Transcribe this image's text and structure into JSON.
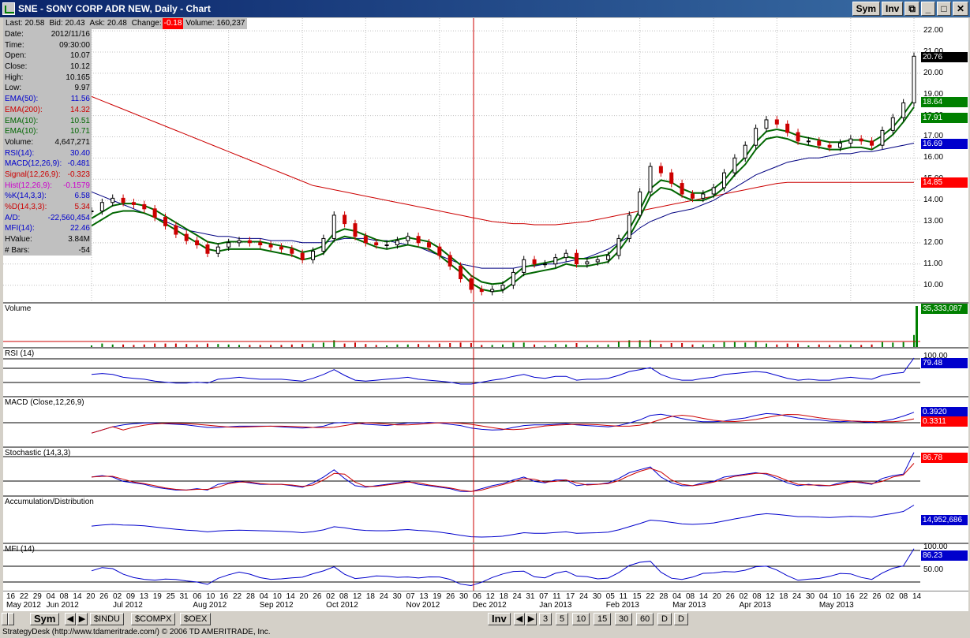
{
  "window": {
    "title": "SNE - SONY CORP ADR NEW, Daily - Chart",
    "buttons": {
      "sym": "Sym",
      "inv": "Inv",
      "restore": "⧉",
      "minimize": "_",
      "maximize": "□",
      "close": "✕"
    }
  },
  "quote_bar": {
    "last": "Last: 20.58",
    "bid": "Bid: 20.43",
    "ask": "Ask: 20.48",
    "change_label": "Change:",
    "change_value": "-0.18",
    "volume": "Volume: 160,237"
  },
  "data_panel": [
    {
      "label": "Date:",
      "value": "2012/11/16",
      "color": "#000000"
    },
    {
      "label": "Time:",
      "value": "09:30:00",
      "color": "#000000"
    },
    {
      "label": "Open:",
      "value": "10.07",
      "color": "#000000"
    },
    {
      "label": "Close:",
      "value": "10.12",
      "color": "#000000"
    },
    {
      "label": "High:",
      "value": "10.165",
      "color": "#000000"
    },
    {
      "label": "Low:",
      "value": "9.97",
      "color": "#000000"
    },
    {
      "label": "EMA(50):",
      "value": "11.56",
      "color": "#0000cc"
    },
    {
      "label": "EMA(200):",
      "value": "14.32",
      "color": "#cc0000"
    },
    {
      "label": "EMA(10):",
      "value": "10.51",
      "color": "#006600"
    },
    {
      "label": "EMA(10):",
      "value": "10.71",
      "color": "#006600"
    },
    {
      "label": "Volume:",
      "value": "4,647,271",
      "color": "#000000"
    },
    {
      "label": "RSI(14):",
      "value": "30.40",
      "color": "#0000cc"
    },
    {
      "label": "MACD(12,26,9):",
      "value": "-0.481",
      "color": "#0000cc"
    },
    {
      "label": "Signal(12,26,9):",
      "value": "-0.323",
      "color": "#cc0000"
    },
    {
      "label": "Hist(12,26,9):",
      "value": "-0.1579",
      "color": "#cc00cc"
    },
    {
      "label": "%K(14,3,3):",
      "value": "6.58",
      "color": "#0000cc"
    },
    {
      "label": "%D(14,3,3):",
      "value": "5.34",
      "color": "#cc0000"
    },
    {
      "label": "A/D:",
      "value": "-22,560,454",
      "color": "#0000cc"
    },
    {
      "label": "MFI(14):",
      "value": "22.46",
      "color": "#0000cc"
    },
    {
      "label": "HValue:",
      "value": "3.84M",
      "color": "#000000"
    },
    {
      "label": "# Bars:",
      "value": "-54",
      "color": "#000000"
    }
  ],
  "price_axis": {
    "ticks": [
      "22.00",
      "21.00",
      "20.00",
      "19.00",
      "18.00",
      "17.00",
      "16.00",
      "15.00",
      "14.00",
      "13.00",
      "12.00",
      "11.00",
      "10.00"
    ],
    "tags": [
      {
        "value": "20.76",
        "bg": "#000000",
        "fg": "#ffffff",
        "price": 20.76
      },
      {
        "value": "18.64",
        "bg": "#008000",
        "fg": "#ffffff",
        "price": 18.64
      },
      {
        "value": "17.91",
        "bg": "#008000",
        "fg": "#ffffff",
        "price": 17.91
      },
      {
        "value": "16.69",
        "bg": "#0000cc",
        "fg": "#ffffff",
        "price": 16.69
      },
      {
        "value": "14.85",
        "bg": "#ff0000",
        "fg": "#ffffff",
        "price": 14.85
      }
    ]
  },
  "panes": {
    "volume": {
      "label": "Volume",
      "tag": "35,333,087"
    },
    "rsi": {
      "label": "RSI (14)",
      "tick": "100.00",
      "tag": "79.48"
    },
    "macd": {
      "label": "MACD (Close,12,26,9)",
      "tag1": "0.3920",
      "tag2": "0.3311"
    },
    "stochastic": {
      "label": "Stochastic (14,3,3)",
      "tag": "86.78"
    },
    "ad": {
      "label": "Accumulation/Distribution",
      "tag": "14,952,686"
    },
    "mfi": {
      "label": "MFI (14)",
      "tick1": "100.00",
      "tick2": "50.00",
      "tag": "86.23"
    }
  },
  "x_axis": {
    "days": [
      "16",
      "22",
      "29",
      "04",
      "08",
      "14",
      "20",
      "26",
      "02",
      "09",
      "13",
      "19",
      "25",
      "31",
      "06",
      "10",
      "16",
      "22",
      "28",
      "04",
      "10",
      "14",
      "20",
      "26",
      "02",
      "08",
      "12",
      "18",
      "24",
      "30",
      "07",
      "13",
      "19",
      "26",
      "30",
      "06",
      "12",
      "18",
      "24",
      "31",
      "07",
      "11",
      "17",
      "24",
      "30",
      "05",
      "11",
      "15",
      "22",
      "28",
      "04",
      "08",
      "14",
      "20",
      "26",
      "02",
      "08",
      "12",
      "18",
      "24",
      "30",
      "04",
      "10",
      "16",
      "22",
      "26",
      "02",
      "08",
      "14"
    ],
    "months": [
      {
        "label": "May 2012",
        "idx": 0
      },
      {
        "label": "Jun 2012",
        "idx": 3
      },
      {
        "label": "Jul 2012",
        "idx": 8
      },
      {
        "label": "Aug 2012",
        "idx": 14
      },
      {
        "label": "Sep 2012",
        "idx": 19
      },
      {
        "label": "Oct 2012",
        "idx": 24
      },
      {
        "label": "Nov 2012",
        "idx": 30
      },
      {
        "label": "Dec 2012",
        "idx": 35
      },
      {
        "label": "Jan 2013",
        "idx": 40
      },
      {
        "label": "Feb 2013",
        "idx": 45
      },
      {
        "label": "Mar 2013",
        "idx": 50
      },
      {
        "label": "Apr 2013",
        "idx": 55
      },
      {
        "label": "May 2013",
        "idx": 61
      }
    ]
  },
  "bottom_bar": {
    "sym": "Sym",
    "symbols": [
      "$INDU",
      "$COMPX",
      "$OEX"
    ],
    "inv": "Inv",
    "periods": [
      "3",
      "5",
      "10",
      "15",
      "30",
      "60",
      "D",
      "D"
    ]
  },
  "status": "StrategyDesk (http://www.tdameritrade.com/) © 2006 TD AMERITRADE, Inc.",
  "colors": {
    "ema200": "#cc0000",
    "ema50": "#000080",
    "ema10": "#006600",
    "up": "#000000",
    "down": "#cc0000",
    "cursor": "#cc0000"
  },
  "chart_data": {
    "type": "line",
    "ylim": [
      9.5,
      22.3
    ],
    "close": [
      13.5,
      13.9,
      14.1,
      13.9,
      13.8,
      13.6,
      13.2,
      12.8,
      12.4,
      12.1,
      11.9,
      11.5,
      11.8,
      12.0,
      12.1,
      12.0,
      11.9,
      11.8,
      11.7,
      11.5,
      11.2,
      11.6,
      12.2,
      13.3,
      12.9,
      12.3,
      12.0,
      11.9,
      11.9,
      12.1,
      12.3,
      12.0,
      11.8,
      11.4,
      10.9,
      10.3,
      9.8,
      9.7,
      9.8,
      10.0,
      10.6,
      11.2,
      11.0,
      11.0,
      11.3,
      11.5,
      11.0,
      11.1,
      11.2,
      11.4,
      12.2,
      13.3,
      14.4,
      15.6,
      15.3,
      14.8,
      14.3,
      14.1,
      14.3,
      14.6,
      15.3,
      16.0,
      16.6,
      17.4,
      17.8,
      17.6,
      17.2,
      16.8,
      16.8,
      16.6,
      16.5,
      16.7,
      16.9,
      16.8,
      16.6,
      17.3,
      17.9,
      18.6,
      20.8
    ],
    "ema10": [
      13.0,
      13.3,
      13.6,
      13.7,
      13.7,
      13.6,
      13.4,
      13.1,
      12.8,
      12.5,
      12.2,
      11.9,
      11.8,
      11.9,
      11.9,
      11.9,
      11.9,
      11.8,
      11.7,
      11.6,
      11.4,
      11.5,
      11.7,
      12.3,
      12.5,
      12.4,
      12.2,
      12.0,
      11.9,
      12.0,
      12.1,
      12.0,
      11.9,
      11.6,
      11.2,
      10.8,
      10.3,
      10.0,
      9.9,
      9.95,
      10.3,
      10.7,
      10.8,
      10.9,
      11.0,
      11.2,
      11.1,
      11.1,
      11.2,
      11.3,
      11.8,
      12.5,
      13.4,
      14.4,
      14.8,
      14.7,
      14.4,
      14.2,
      14.2,
      14.4,
      14.8,
      15.4,
      15.9,
      16.6,
      17.1,
      17.2,
      17.1,
      16.9,
      16.8,
      16.7,
      16.6,
      16.6,
      16.7,
      16.7,
      16.6,
      16.9,
      17.3,
      17.9,
      18.6
    ],
    "ema50": [
      14.4,
      14.2,
      14.0,
      13.8,
      13.6,
      13.4,
      13.2,
      13.0,
      12.8,
      12.6,
      12.5,
      12.4,
      12.3,
      12.3,
      12.2,
      12.2,
      12.2,
      12.1,
      12.1,
      12.1,
      12.0,
      12.0,
      12.0,
      12.1,
      12.2,
      12.2,
      12.2,
      12.1,
      12.1,
      12.0,
      11.9,
      11.8,
      11.6,
      11.4,
      11.2,
      11.0,
      10.9,
      10.8,
      10.8,
      10.8,
      10.8,
      10.9,
      10.9,
      11.0,
      11.0,
      11.1,
      11.2,
      11.3,
      11.5,
      11.7,
      12.0,
      12.3,
      12.7,
      13.0,
      13.2,
      13.4,
      13.5,
      13.6,
      13.8,
      14.0,
      14.3,
      14.6,
      14.9,
      15.2,
      15.4,
      15.6,
      15.8,
      15.9,
      16.0,
      16.0,
      16.1,
      16.2,
      16.2,
      16.3,
      16.3,
      16.4,
      16.5,
      16.6,
      16.7
    ],
    "ema200": [
      18.9,
      18.7,
      18.5,
      18.3,
      18.1,
      17.9,
      17.7,
      17.5,
      17.3,
      17.1,
      16.9,
      16.7,
      16.5,
      16.3,
      16.1,
      15.9,
      15.7,
      15.5,
      15.3,
      15.1,
      14.9,
      14.7,
      14.6,
      14.5,
      14.4,
      14.3,
      14.2,
      14.1,
      14.0,
      13.9,
      13.8,
      13.7,
      13.6,
      13.5,
      13.4,
      13.3,
      13.2,
      13.1,
      13.0,
      12.95,
      12.9,
      12.9,
      12.85,
      12.85,
      12.85,
      12.9,
      12.95,
      13.0,
      13.1,
      13.2,
      13.3,
      13.4,
      13.5,
      13.6,
      13.7,
      13.8,
      13.9,
      14.0,
      14.1,
      14.2,
      14.3,
      14.4,
      14.5,
      14.6,
      14.7,
      14.8,
      14.85,
      14.85,
      14.85,
      14.85,
      14.85,
      14.85,
      14.85,
      14.85,
      14.85,
      14.85,
      14.85,
      14.85,
      14.85
    ]
  }
}
